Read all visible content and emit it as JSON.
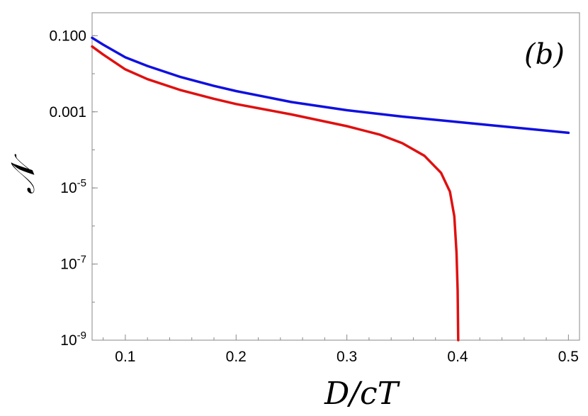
{
  "chart_data": {
    "type": "line",
    "title": "",
    "panel_label": "(b)",
    "xlabel": "D/cT",
    "ylabel": "𝒩",
    "xlim": [
      0.07,
      0.51
    ],
    "ylim": [
      1e-09,
      0.4
    ],
    "yscale": "log",
    "xticks": [
      0.1,
      0.2,
      0.3,
      0.4,
      0.5
    ],
    "xtick_labels": [
      "0.1",
      "0.2",
      "0.3",
      "0.4",
      "0.5"
    ],
    "yticks": [
      {
        "value": 0.1,
        "base": "0.100",
        "exp": ""
      },
      {
        "value": 0.001,
        "base": "0.001",
        "exp": ""
      },
      {
        "value": 1e-05,
        "base": "10",
        "exp": "-5"
      },
      {
        "value": 1e-07,
        "base": "10",
        "exp": "-7"
      },
      {
        "value": 1e-09,
        "base": "10",
        "exp": "-9"
      }
    ],
    "grid": false,
    "series": [
      {
        "color": "#1010e0",
        "x": [
          0.07,
          0.08,
          0.1,
          0.12,
          0.15,
          0.18,
          0.2,
          0.25,
          0.3,
          0.35,
          0.4,
          0.45,
          0.5
        ],
        "y": [
          0.088,
          0.058,
          0.027,
          0.016,
          0.0082,
          0.0048,
          0.0035,
          0.0018,
          0.0011,
          0.00075,
          0.00054,
          0.00039,
          0.00028
        ]
      },
      {
        "color": "#e01010",
        "x": [
          0.07,
          0.08,
          0.1,
          0.12,
          0.15,
          0.18,
          0.2,
          0.25,
          0.3,
          0.33,
          0.35,
          0.37,
          0.385,
          0.393,
          0.397,
          0.399,
          0.4,
          0.4003,
          0.4005
        ],
        "y": [
          0.052,
          0.032,
          0.013,
          0.0072,
          0.0037,
          0.0022,
          0.0016,
          0.00085,
          0.00042,
          0.00025,
          0.00015,
          7e-05,
          2.5e-05,
          8e-06,
          1.8e-06,
          2e-07,
          2e-08,
          3e-09,
          1e-09
        ]
      }
    ]
  }
}
